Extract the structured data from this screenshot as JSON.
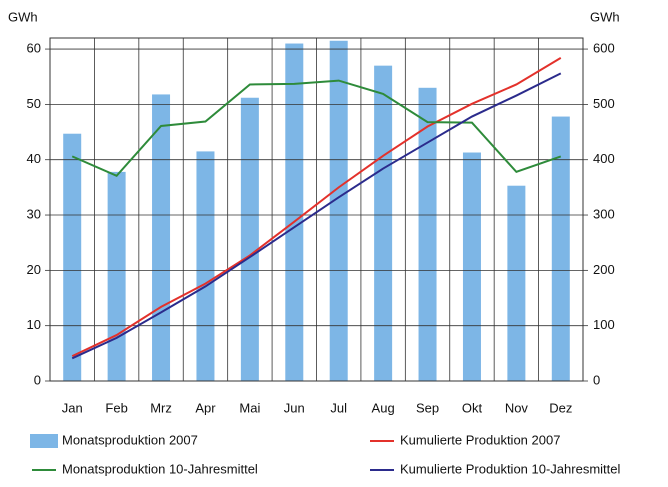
{
  "chart_data": {
    "type": "bar",
    "y_label": "GWh",
    "y2_label": "GWh",
    "categories": [
      "Jan",
      "Feb",
      "Mrz",
      "Apr",
      "Mai",
      "Jun",
      "Jul",
      "Aug",
      "Sep",
      "Okt",
      "Nov",
      "Dez"
    ],
    "series": [
      {
        "name": "Monatsproduktion 2007",
        "type": "bar",
        "color": "#7db6e6",
        "values": [
          44.7,
          37.8,
          51.8,
          41.5,
          51.2,
          61,
          61.5,
          57,
          53,
          41.3,
          35.3,
          47.8
        ]
      },
      {
        "name": "Kumulierte Produktion 2007",
        "type": "line",
        "axis": "y2",
        "color": "#e3312b",
        "values": [
          45,
          83,
          134,
          176,
          227,
          288,
          350,
          407,
          460,
          501,
          536,
          584
        ]
      },
      {
        "name": "Monatsproduktion 10-Jahresmittel",
        "type": "line",
        "color": "#2e8b3a",
        "values": [
          40.6,
          37.1,
          46.1,
          46.9,
          53.6,
          53.7,
          54.3,
          51.9,
          46.8,
          46.7,
          37.8,
          40.6
        ]
      },
      {
        "name": "Kumulierte Produktion 10-Jahresmittel",
        "type": "line",
        "axis": "y2",
        "color": "#2b2b8c",
        "values": [
          41,
          78,
          124,
          171,
          224,
          278,
          332,
          384,
          431,
          478,
          516,
          556
        ]
      }
    ],
    "ylim": [
      0,
      62
    ],
    "yticks": [
      0,
      10,
      20,
      30,
      40,
      50,
      60
    ],
    "y2lim": [
      0,
      620
    ],
    "y2ticks": [
      0,
      100,
      200,
      300,
      400,
      500,
      600
    ],
    "grid": true
  }
}
